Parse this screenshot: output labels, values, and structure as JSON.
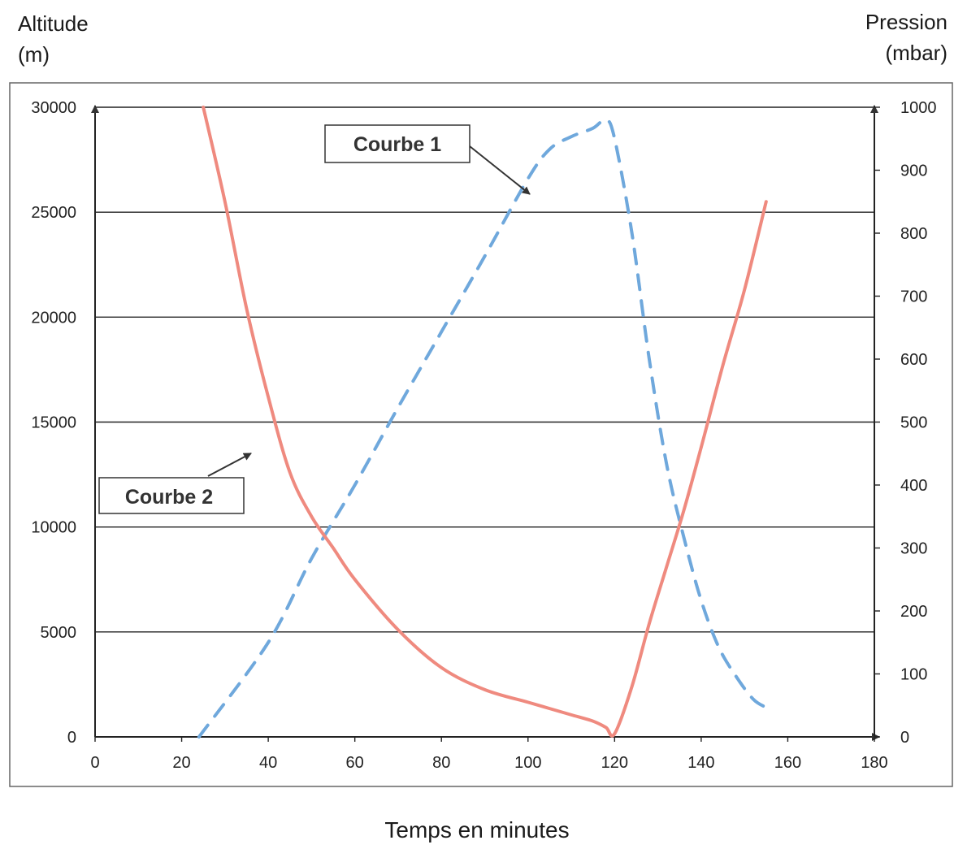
{
  "axes": {
    "left_title_line1": "Altitude",
    "left_title_line2": "(m)",
    "right_title_line1": "Pression",
    "right_title_line2": "(mbar)",
    "x_title": "Temps en minutes"
  },
  "callouts": {
    "courbe1": "Courbe 1",
    "courbe2": "Courbe 2"
  },
  "colors": {
    "courbe1": "#6fa8dc",
    "courbe2": "#ef8a7f",
    "grid": "#222222"
  },
  "chart_data": {
    "type": "line",
    "xlabel": "Temps en minutes",
    "ylabel": "Altitude (m)",
    "y2label": "Pression (mbar)",
    "xlim": [
      0,
      180
    ],
    "ylim": [
      0,
      30000
    ],
    "y2lim": [
      0,
      1000
    ],
    "x_ticks": [
      "0",
      "20",
      "40",
      "60",
      "80",
      "100",
      "120",
      "140",
      "160",
      "180"
    ],
    "y_ticks": [
      "0",
      "5000",
      "10000",
      "15000",
      "20000",
      "25000",
      "30000"
    ],
    "y2_ticks": [
      "0",
      "100",
      "200",
      "300",
      "400",
      "500",
      "600",
      "700",
      "800",
      "900",
      "1000"
    ],
    "grid": "horizontal",
    "series": [
      {
        "name": "Courbe 1",
        "axis": "left",
        "style": "dashed",
        "x": [
          24,
          40,
          50,
          60,
          70,
          80,
          90,
          100,
          105,
          110,
          115,
          118,
          120,
          124,
          128,
          132,
          136,
          140,
          144,
          148,
          152,
          155
        ],
        "y": [
          0,
          4500,
          8500,
          12000,
          15700,
          19300,
          22900,
          26600,
          28000,
          28600,
          29000,
          29400,
          28500,
          24000,
          18000,
          13000,
          9500,
          6500,
          4300,
          2900,
          1800,
          1400
        ]
      },
      {
        "name": "Courbe 2",
        "axis": "right",
        "style": "solid",
        "x": [
          25,
          30,
          35,
          40,
          45,
          50,
          55,
          60,
          70,
          80,
          90,
          100,
          105,
          110,
          115,
          118,
          120,
          124,
          128,
          132,
          136,
          140,
          145,
          150,
          155
        ],
        "y": [
          1000,
          850,
          680,
          540,
          420,
          350,
          300,
          250,
          170,
          110,
          75,
          55,
          45,
          35,
          25,
          15,
          5,
          80,
          180,
          270,
          360,
          460,
          590,
          710,
          850
        ]
      }
    ]
  }
}
